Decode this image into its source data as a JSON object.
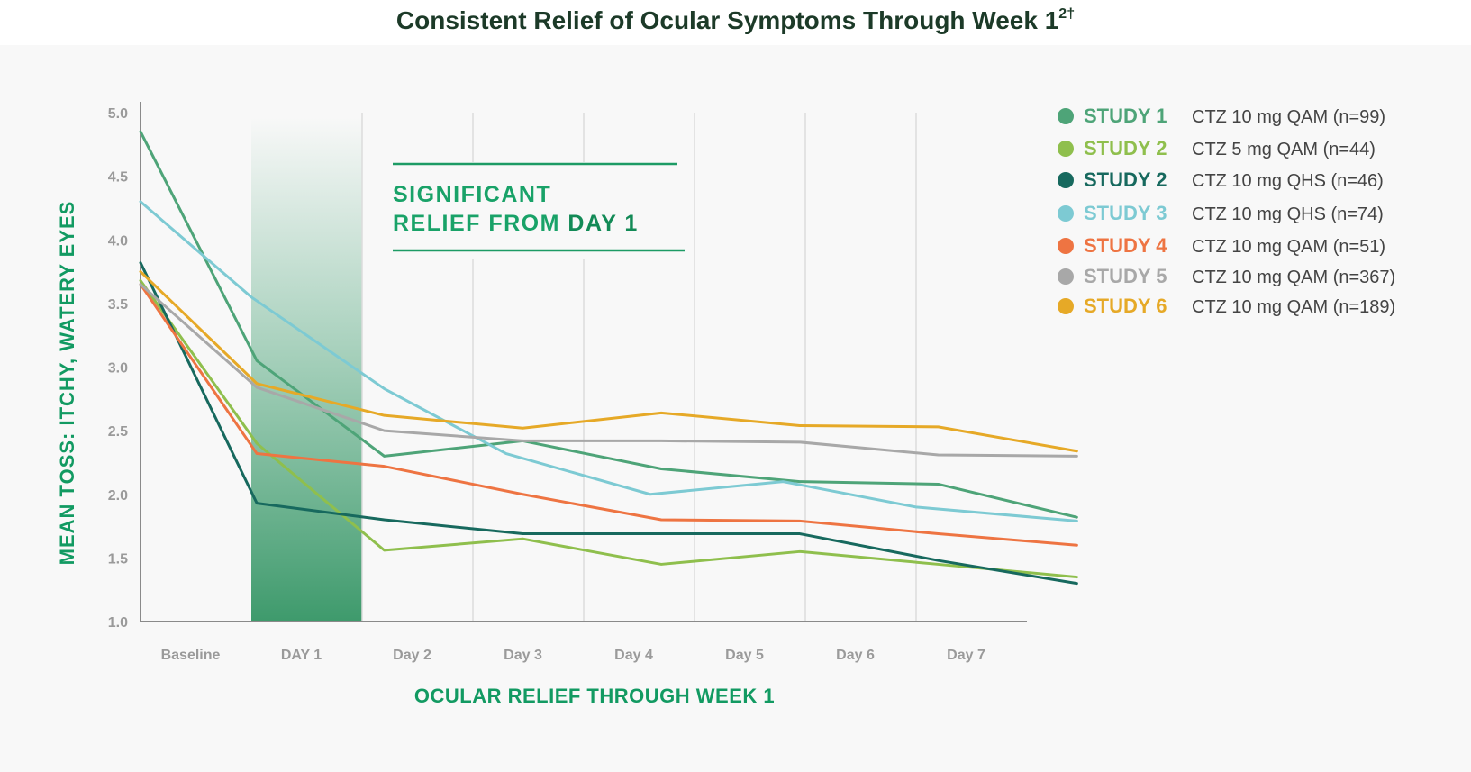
{
  "chart_data": {
    "type": "line",
    "title": "Consistent Relief of Ocular Symptoms Through Week 1",
    "title_sup": "2†",
    "xlabel": "OCULAR RELIEF THROUGH WEEK 1",
    "ylabel": "MEAN TOSS: ITCHY, WATERY EYES",
    "categories": [
      "Baseline",
      "DAY 1",
      "Day 2",
      "Day 3",
      "Day 4",
      "Day 5",
      "Day 6",
      "Day 7"
    ],
    "highlight_category": "DAY 1",
    "ylim": [
      1.0,
      5.0
    ],
    "yticks": [
      "1.0",
      "1.5",
      "2.0",
      "2.5",
      "3.0",
      "3.5",
      "4.0",
      "4.5",
      "5.0"
    ],
    "grid": "vertical",
    "annotation": {
      "line1": "SIGNIFICANT",
      "line2_prefix": "RELIEF FROM ",
      "line2_strong": "DAY 1"
    },
    "series": [
      {
        "name": "STUDY 1",
        "desc": "CTZ 10 mg QAM (n=99)",
        "color": "#4ea478",
        "x": [
          0,
          1.05,
          2.2,
          3.45,
          4.7,
          5.95,
          7.2,
          8.45
        ],
        "values": [
          4.85,
          3.05,
          2.3,
          2.42,
          2.2,
          2.1,
          2.08,
          1.82
        ]
      },
      {
        "name": "STUDY 2",
        "desc": "CTZ 5 mg QAM (n=44)",
        "color": "#8fbf4d",
        "x": [
          0,
          1.05,
          2.2,
          3.45,
          4.7,
          5.95,
          7.2,
          8.45
        ],
        "values": [
          3.68,
          2.4,
          1.56,
          1.65,
          1.45,
          1.55,
          1.45,
          1.35
        ]
      },
      {
        "name": "STUDY 2",
        "desc": "CTZ 10 mg QHS (n=46)",
        "color": "#17695e",
        "x": [
          0,
          1.05,
          2.2,
          3.45,
          4.7,
          5.95,
          7.2,
          8.45
        ],
        "values": [
          3.82,
          1.93,
          1.8,
          1.69,
          1.69,
          1.69,
          1.48,
          1.3
        ]
      },
      {
        "name": "STUDY 3",
        "desc": "CTZ 10 mg QHS (n=74)",
        "color": "#7dcad3",
        "x": [
          0,
          1,
          2.2,
          3.3,
          4.6,
          5.8,
          7.0,
          8.45
        ],
        "values": [
          4.3,
          3.55,
          2.83,
          2.32,
          2.0,
          2.1,
          1.9,
          1.79
        ]
      },
      {
        "name": "STUDY 4",
        "desc": "CTZ 10 mg QAM (n=51)",
        "color": "#ee7442",
        "x": [
          0,
          1.05,
          2.2,
          3.45,
          4.7,
          5.95,
          7.2,
          8.45
        ],
        "values": [
          3.65,
          2.32,
          2.22,
          2.0,
          1.8,
          1.79,
          1.69,
          1.6
        ]
      },
      {
        "name": "STUDY 5",
        "desc": "CTZ 10 mg QAM (n=367)",
        "color": "#a8a8a8",
        "x": [
          0,
          1.05,
          2.2,
          3.45,
          4.7,
          5.95,
          7.2,
          8.45
        ],
        "values": [
          3.65,
          2.84,
          2.5,
          2.42,
          2.42,
          2.41,
          2.31,
          2.3
        ]
      },
      {
        "name": "STUDY 6",
        "desc": "CTZ 10 mg QAM (n=189)",
        "color": "#e6a927",
        "x": [
          0,
          1.05,
          2.2,
          3.45,
          4.7,
          5.95,
          7.2,
          8.45
        ],
        "values": [
          3.75,
          2.87,
          2.62,
          2.52,
          2.64,
          2.54,
          2.53,
          2.34
        ]
      }
    ],
    "legend_position": "right"
  }
}
